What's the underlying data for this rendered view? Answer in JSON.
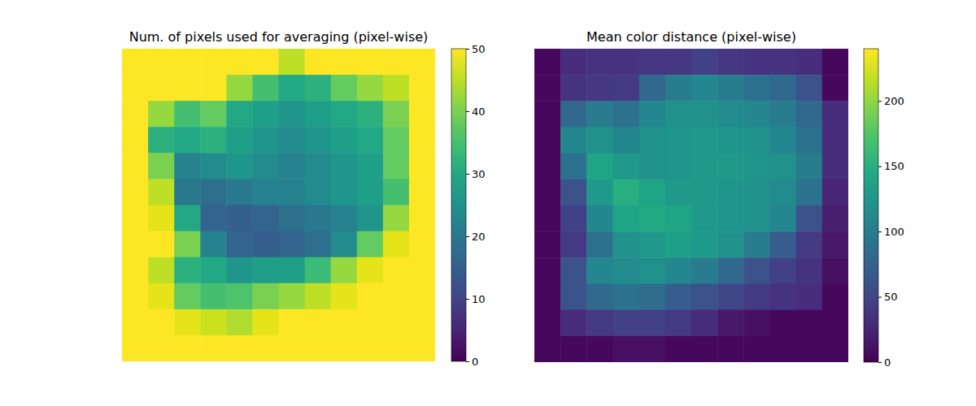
{
  "chart_data": [
    {
      "type": "heatmap",
      "title": "Num. of pixels used for averaging (pixel-wise)",
      "tick_labels": false,
      "zlim": [
        0,
        50
      ],
      "zticks": [
        0,
        10,
        20,
        30,
        40,
        50
      ],
      "values": [
        [
          50,
          50,
          50,
          50,
          50,
          50,
          45,
          50,
          50,
          50,
          50,
          50
        ],
        [
          50,
          50,
          50,
          50,
          42,
          35,
          30,
          32,
          38,
          42,
          45,
          50
        ],
        [
          50,
          42,
          35,
          38,
          30,
          28,
          26,
          28,
          30,
          32,
          40,
          50
        ],
        [
          50,
          32,
          30,
          32,
          28,
          26,
          24,
          26,
          28,
          30,
          38,
          50
        ],
        [
          50,
          40,
          22,
          24,
          26,
          24,
          22,
          24,
          26,
          28,
          38,
          50
        ],
        [
          50,
          45,
          20,
          18,
          20,
          22,
          22,
          24,
          26,
          28,
          35,
          50
        ],
        [
          50,
          48,
          30,
          16,
          15,
          16,
          18,
          20,
          22,
          26,
          42,
          50
        ],
        [
          50,
          50,
          40,
          22,
          16,
          15,
          16,
          18,
          24,
          38,
          48,
          50
        ],
        [
          50,
          45,
          32,
          30,
          26,
          28,
          28,
          34,
          42,
          48,
          50,
          50
        ],
        [
          50,
          48,
          38,
          35,
          36,
          40,
          42,
          45,
          48,
          50,
          50,
          50
        ],
        [
          50,
          50,
          48,
          46,
          44,
          48,
          50,
          50,
          50,
          50,
          50,
          50
        ],
        [
          50,
          50,
          50,
          50,
          50,
          50,
          50,
          50,
          50,
          50,
          50,
          50
        ]
      ]
    },
    {
      "type": "heatmap",
      "title": "Mean color distance (pixel-wise)",
      "tick_labels": false,
      "zlim": [
        0,
        240
      ],
      "zticks": [
        0,
        50,
        100,
        150,
        200
      ],
      "values": [
        [
          5,
          30,
          35,
          35,
          38,
          38,
          45,
          38,
          35,
          35,
          30,
          5
        ],
        [
          5,
          35,
          38,
          40,
          80,
          100,
          110,
          100,
          90,
          80,
          60,
          5
        ],
        [
          5,
          80,
          100,
          90,
          110,
          120,
          120,
          115,
          110,
          100,
          80,
          30
        ],
        [
          5,
          110,
          120,
          110,
          120,
          125,
          130,
          125,
          120,
          110,
          90,
          30
        ],
        [
          5,
          90,
          140,
          130,
          120,
          125,
          130,
          130,
          125,
          120,
          100,
          30
        ],
        [
          5,
          60,
          130,
          150,
          140,
          130,
          130,
          125,
          120,
          115,
          90,
          25
        ],
        [
          5,
          45,
          110,
          140,
          145,
          140,
          130,
          125,
          120,
          110,
          60,
          20
        ],
        [
          5,
          40,
          90,
          120,
          130,
          135,
          130,
          120,
          100,
          70,
          40,
          15
        ],
        [
          5,
          60,
          110,
          115,
          120,
          110,
          100,
          80,
          60,
          45,
          35,
          10
        ],
        [
          5,
          60,
          80,
          90,
          85,
          70,
          60,
          50,
          40,
          35,
          30,
          5
        ],
        [
          5,
          30,
          40,
          45,
          45,
          40,
          30,
          15,
          10,
          5,
          5,
          5
        ],
        [
          5,
          5,
          5,
          10,
          10,
          5,
          5,
          5,
          5,
          5,
          5,
          5
        ]
      ]
    }
  ]
}
